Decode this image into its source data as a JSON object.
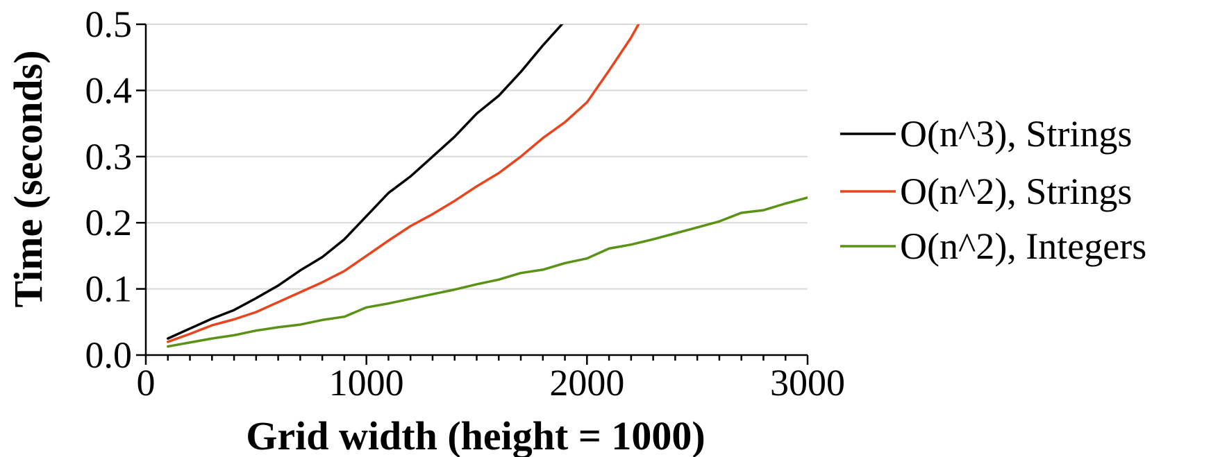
{
  "chart_data": {
    "type": "line",
    "title": "",
    "xlabel": "Grid width (height = 1000)",
    "ylabel": "Time (seconds)",
    "xlim": [
      0,
      3000
    ],
    "ylim": [
      0,
      0.5
    ],
    "xticks": [
      0,
      1000,
      2000,
      3000
    ],
    "xtick_labels": [
      "0",
      "1000",
      "2000",
      "3000"
    ],
    "xminor_step": 100,
    "yticks": [
      0,
      0.1,
      0.2,
      0.3,
      0.4,
      0.5
    ],
    "ytick_labels": [
      "0.0",
      "0.1",
      "0.2",
      "0.3",
      "0.4",
      "0.5"
    ],
    "grid": "horizontal",
    "legend_position": "right",
    "series": [
      {
        "name": "O(n^3), Strings",
        "color": "#000000",
        "x": [
          100,
          200,
          300,
          400,
          500,
          600,
          700,
          800,
          900,
          1000,
          1100,
          1200,
          1300,
          1400,
          1500,
          1600,
          1700,
          1800,
          1900
        ],
        "y": [
          0.025,
          0.04,
          0.055,
          0.068,
          0.086,
          0.105,
          0.128,
          0.148,
          0.175,
          0.21,
          0.245,
          0.27,
          0.3,
          0.33,
          0.365,
          0.392,
          0.428,
          0.468,
          0.505
        ]
      },
      {
        "name": "O(n^2), Strings",
        "color": "#e8451e",
        "x": [
          100,
          200,
          300,
          400,
          500,
          600,
          700,
          800,
          900,
          1000,
          1100,
          1200,
          1300,
          1400,
          1500,
          1600,
          1700,
          1800,
          1900,
          2000,
          2100,
          2200,
          2250
        ],
        "y": [
          0.02,
          0.032,
          0.045,
          0.054,
          0.065,
          0.08,
          0.095,
          0.11,
          0.127,
          0.15,
          0.173,
          0.195,
          0.213,
          0.233,
          0.255,
          0.275,
          0.3,
          0.328,
          0.352,
          0.382,
          0.43,
          0.48,
          0.51
        ]
      },
      {
        "name": "O(n^2), Integers",
        "color": "#5a9216",
        "x": [
          100,
          200,
          300,
          400,
          500,
          600,
          700,
          800,
          900,
          1000,
          1100,
          1200,
          1300,
          1400,
          1500,
          1600,
          1700,
          1800,
          1900,
          2000,
          2100,
          2200,
          2300,
          2400,
          2500,
          2600,
          2700,
          2800,
          2900,
          3000
        ],
        "y": [
          0.013,
          0.019,
          0.025,
          0.03,
          0.037,
          0.042,
          0.046,
          0.053,
          0.058,
          0.072,
          0.078,
          0.085,
          0.092,
          0.099,
          0.107,
          0.114,
          0.124,
          0.129,
          0.139,
          0.146,
          0.161,
          0.167,
          0.175,
          0.184,
          0.193,
          0.202,
          0.215,
          0.219,
          0.229,
          0.238
        ]
      }
    ]
  }
}
